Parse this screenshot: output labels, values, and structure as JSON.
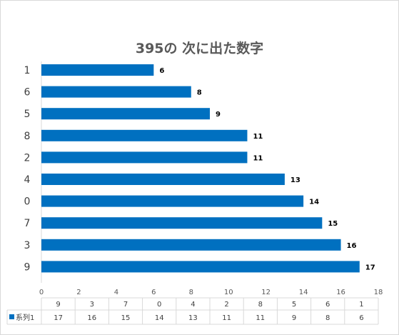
{
  "chart_data": {
    "type": "bar",
    "orientation": "horizontal",
    "title": "395の 次に出た数字",
    "categories": [
      "1",
      "6",
      "5",
      "8",
      "2",
      "4",
      "0",
      "7",
      "3",
      "9"
    ],
    "series": [
      {
        "name": "系列1",
        "values": [
          6,
          8,
          9,
          11,
          11,
          13,
          14,
          15,
          16,
          17
        ],
        "color": "#0070c0"
      }
    ],
    "xlim": [
      0,
      18
    ],
    "xticks": [
      0,
      2,
      4,
      6,
      8,
      10,
      12,
      14,
      16,
      18
    ],
    "grid": false,
    "legend": "data-table",
    "data_table": {
      "header": [
        "9",
        "3",
        "7",
        "0",
        "4",
        "2",
        "8",
        "5",
        "6",
        "1"
      ],
      "series_label": "系列1",
      "values": [
        17,
        16,
        15,
        14,
        13,
        11,
        11,
        9,
        8,
        6
      ]
    }
  }
}
